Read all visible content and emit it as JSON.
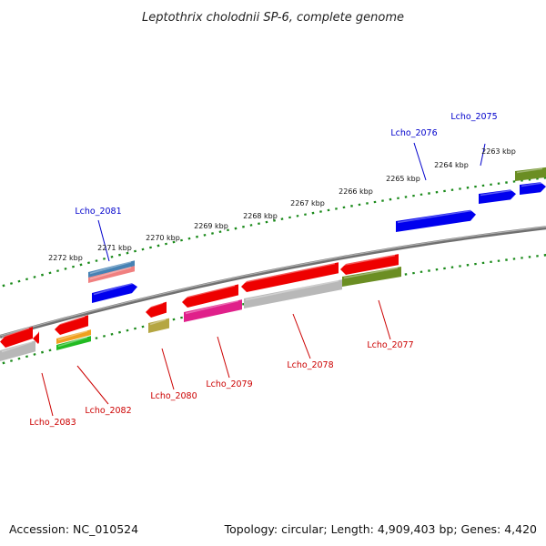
{
  "header": {
    "title": "Leptothrix cholodnii SP-6, complete genome"
  },
  "footer": {
    "accession": "Accession: NC_010524",
    "summary": "Topology: circular; Length: 4,909,403 bp; Genes: 4,420"
  },
  "colors": {
    "backbone": "#808080",
    "tick": "#1a8a1a",
    "label_forward": "#0000cc",
    "label_reverse": "#cc0000",
    "red": "#ee0000",
    "blue": "#0000ee",
    "olive": "#6b8e23",
    "gray": "#b8b8b8",
    "pink": "#e0208a",
    "khaki": "#b5a642",
    "steelblue": "#4682b4",
    "salmon": "#f08080",
    "orange": "#f0a020",
    "green": "#22bb22"
  },
  "map": {
    "tick_labels": [
      {
        "label": "2263 kbp",
        "kbp": 2263
      },
      {
        "label": "2264 kbp",
        "kbp": 2264
      },
      {
        "label": "2265 kbp",
        "kbp": 2265
      },
      {
        "label": "2266 kbp",
        "kbp": 2266
      },
      {
        "label": "2267 kbp",
        "kbp": 2267
      },
      {
        "label": "2268 kbp",
        "kbp": 2268
      },
      {
        "label": "2269 kbp",
        "kbp": 2269
      },
      {
        "label": "2270 kbp",
        "kbp": 2270
      },
      {
        "label": "2271 kbp",
        "kbp": 2271
      },
      {
        "label": "2272 kbp",
        "kbp": 2272
      }
    ],
    "gene_labels": [
      {
        "id": "Lcho_2075",
        "strand": "forward"
      },
      {
        "id": "Lcho_2076",
        "strand": "forward"
      },
      {
        "id": "Lcho_2081",
        "strand": "forward"
      },
      {
        "id": "Lcho_2077",
        "strand": "reverse"
      },
      {
        "id": "Lcho_2078",
        "strand": "reverse"
      },
      {
        "id": "Lcho_2079",
        "strand": "reverse"
      },
      {
        "id": "Lcho_2080",
        "strand": "reverse"
      },
      {
        "id": "Lcho_2082",
        "strand": "reverse"
      },
      {
        "id": "Lcho_2083",
        "strand": "reverse"
      }
    ]
  }
}
